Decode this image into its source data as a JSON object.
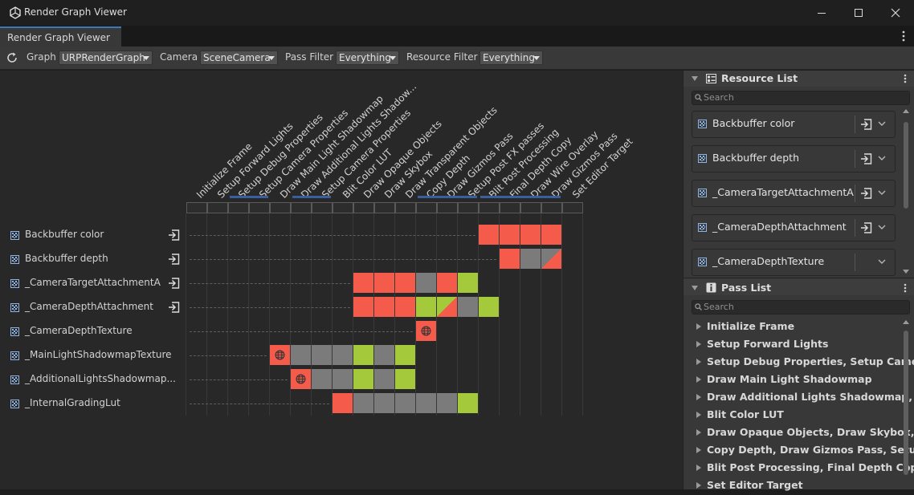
{
  "window": {
    "title": "Render Graph Viewer"
  },
  "tab": {
    "label": "Render Graph Viewer"
  },
  "toolbar": {
    "graph_label": "Graph",
    "graph_value": "URPRenderGraph",
    "camera_label": "Camera",
    "camera_value": "SceneCamera",
    "pass_filter_label": "Pass Filter",
    "pass_filter_value": "Everything",
    "resource_filter_label": "Resource Filter",
    "resource_filter_value": "Everything"
  },
  "passes": [
    "Initialize Frame",
    "Setup Forward Lights",
    "Setup Debug Properties",
    "Setup Camera Properties",
    "Draw Main Light Shadowmap",
    "Draw Additional Lights Shadow...",
    "Setup Camera Properties",
    "Blit Color LUT",
    "Draw Opaque Objects",
    "Draw Skybox",
    "Draw Transparent Objects",
    "Copy Depth",
    "Draw Gizmos Pass",
    "Setup Post FX passes",
    "Blit Post Processing",
    "Final Depth Copy",
    "Draw Wire Overlay",
    "Draw Gizmos Pass",
    "Set Editor Target"
  ],
  "resources": [
    {
      "name": "Backbuffer color",
      "imported": true,
      "cells": [
        [
          14,
          "red"
        ],
        [
          15,
          "red"
        ],
        [
          16,
          "red"
        ],
        [
          17,
          "red"
        ]
      ]
    },
    {
      "name": "Backbuffer depth",
      "imported": true,
      "cells": [
        [
          15,
          "red"
        ],
        [
          16,
          "gray"
        ],
        [
          17,
          "split"
        ]
      ]
    },
    {
      "name": "_CameraTargetAttachmentA",
      "imported": true,
      "cells": [
        [
          8,
          "red"
        ],
        [
          9,
          "red"
        ],
        [
          10,
          "red"
        ],
        [
          11,
          "gray"
        ],
        [
          12,
          "red"
        ],
        [
          13,
          "green"
        ]
      ]
    },
    {
      "name": "_CameraDepthAttachment",
      "imported": true,
      "cells": [
        [
          8,
          "red"
        ],
        [
          9,
          "red"
        ],
        [
          10,
          "red"
        ],
        [
          11,
          "green"
        ],
        [
          12,
          "split"
        ],
        [
          13,
          "gray"
        ],
        [
          14,
          "green"
        ]
      ]
    },
    {
      "name": "_CameraDepthTexture",
      "imported": false,
      "cells": [
        [
          11,
          "red-globe"
        ]
      ]
    },
    {
      "name": "_MainLightShadowmapTexture",
      "imported": false,
      "cells": [
        [
          4,
          "red-globe"
        ],
        [
          5,
          "gray"
        ],
        [
          6,
          "gray"
        ],
        [
          7,
          "gray"
        ],
        [
          8,
          "green"
        ],
        [
          9,
          "gray"
        ],
        [
          10,
          "green"
        ]
      ]
    },
    {
      "name": "_AdditionalLightsShadowmap...",
      "imported": false,
      "cells": [
        [
          5,
          "red-globe"
        ],
        [
          6,
          "gray"
        ],
        [
          7,
          "gray"
        ],
        [
          8,
          "green"
        ],
        [
          9,
          "gray"
        ],
        [
          10,
          "green"
        ]
      ]
    },
    {
      "name": "_InternalGradingLut",
      "imported": false,
      "cells": [
        [
          7,
          "red"
        ],
        [
          8,
          "gray"
        ],
        [
          9,
          "gray"
        ],
        [
          10,
          "gray"
        ],
        [
          11,
          "gray"
        ],
        [
          12,
          "gray"
        ],
        [
          13,
          "green"
        ]
      ]
    }
  ],
  "resource_list": {
    "title": "Resource List",
    "search_placeholder": "Search",
    "items": [
      "Backbuffer color",
      "Backbuffer depth",
      "_CameraTargetAttachmentA",
      "_CameraDepthAttachment",
      "_CameraDepthTexture"
    ]
  },
  "pass_list": {
    "title": "Pass List",
    "search_placeholder": "Search",
    "items": [
      "Initialize Frame",
      "Setup Forward Lights",
      "Setup Debug Properties, Setup Camer...",
      "Draw Main Light Shadowmap",
      "Draw Additional Lights Shadowmap, S...",
      "Blit Color LUT",
      "Draw Opaque Objects, Draw Skybox, D...",
      "Copy Depth, Draw Gizmos Pass, Setup...",
      "Blit Post Processing, Final Depth Copy,...",
      "Set Editor Target"
    ]
  },
  "colors": {
    "write": "#f55b4a",
    "read": "#a4c93a",
    "unused": "#7b7b7b",
    "accent": "#3a79bb"
  }
}
